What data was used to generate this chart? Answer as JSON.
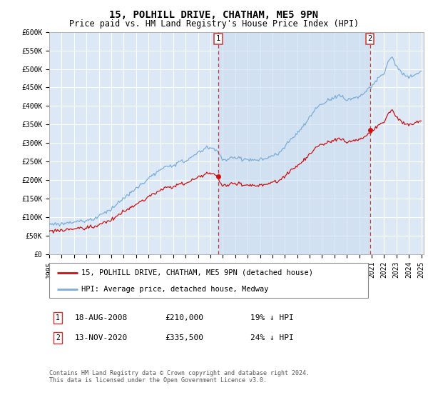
{
  "title": "15, POLHILL DRIVE, CHATHAM, ME5 9PN",
  "subtitle": "Price paid vs. HM Land Registry's House Price Index (HPI)",
  "ylim": [
    0,
    600000
  ],
  "yticks": [
    0,
    50000,
    100000,
    150000,
    200000,
    250000,
    300000,
    350000,
    400000,
    450000,
    500000,
    550000,
    600000
  ],
  "ytick_labels": [
    "£0",
    "£50K",
    "£100K",
    "£150K",
    "£200K",
    "£250K",
    "£300K",
    "£350K",
    "£400K",
    "£450K",
    "£500K",
    "£550K",
    "£600K"
  ],
  "bg_color": "#dce8f5",
  "grid_color": "#ffffff",
  "hpi_color": "#7aaddc",
  "price_color": "#cc1111",
  "fill_color": "#c8dcee",
  "dashed_line_color": "#cc3333",
  "sale1_date_num": 2008.63,
  "sale1_price": 210000,
  "sale2_date_num": 2020.87,
  "sale2_price": 335500,
  "legend_label_price": "15, POLHILL DRIVE, CHATHAM, ME5 9PN (detached house)",
  "legend_label_hpi": "HPI: Average price, detached house, Medway",
  "annotation1_label": "18-AUG-2008",
  "annotation1_price": "£210,000",
  "annotation1_pct": "19% ↓ HPI",
  "annotation2_label": "13-NOV-2020",
  "annotation2_price": "£335,500",
  "annotation2_pct": "24% ↓ HPI",
  "footer": "Contains HM Land Registry data © Crown copyright and database right 2024.\nThis data is licensed under the Open Government Licence v3.0.",
  "title_fontsize": 10,
  "subtitle_fontsize": 8.5,
  "tick_fontsize": 7,
  "legend_fontsize": 7.5,
  "annotation_fontsize": 8,
  "footer_fontsize": 6
}
